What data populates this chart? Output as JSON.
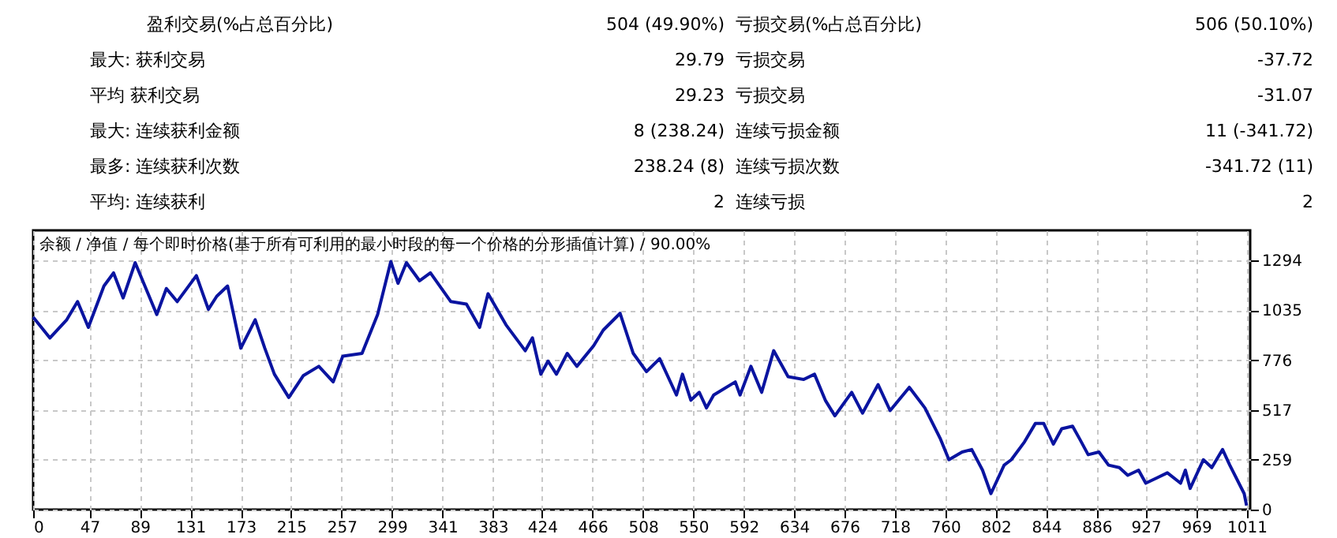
{
  "chart_data": {
    "type": "line",
    "title": "余额 / 净值 / 每个即时价格(基于所有可利用的最小时段的每一个价格的分形插值计算) / 90.00%",
    "x": [
      0,
      14,
      28,
      37,
      46,
      59,
      67,
      75,
      85,
      103,
      111,
      120,
      136,
      146,
      153,
      162,
      173,
      185,
      193,
      201,
      213,
      225,
      238,
      250,
      258,
      274,
      287,
      298,
      304,
      311,
      322,
      331,
      348,
      361,
      372,
      379,
      394,
      410,
      416,
      423,
      429,
      436,
      445,
      453,
      467,
      475,
      489,
      500,
      511,
      522,
      536,
      541,
      548,
      555,
      561,
      567,
      585,
      589,
      598,
      607,
      617,
      629,
      642,
      651,
      660,
      668,
      682,
      691,
      704,
      714,
      730,
      743,
      756,
      763,
      774,
      782,
      791,
      798,
      809,
      815,
      826,
      835,
      842,
      850,
      857,
      866,
      872,
      879,
      888,
      896,
      905,
      912,
      921,
      927,
      936,
      945,
      956,
      960,
      964,
      975,
      982,
      991,
      997,
      1009,
      1011
    ],
    "series": [
      {
        "color": "#0a14a0",
        "values": [
          999,
          891,
          986,
          1080,
          946,
          1161,
          1229,
          1099,
          1282,
          1013,
          1148,
          1080,
          1215,
          1040,
          1108,
          1161,
          838,
          986,
          838,
          703,
          582,
          695,
          744,
          663,
          797,
          811,
          1013,
          1288,
          1175,
          1282,
          1188,
          1229,
          1080,
          1067,
          946,
          1121,
          959,
          825,
          892,
          703,
          771,
          703,
          811,
          744,
          851,
          932,
          1019,
          811,
          716,
          784,
          595,
          703,
          568,
          609,
          528,
          595,
          663,
          595,
          744,
          609,
          825,
          690,
          676,
          703,
          568,
          487,
          609,
          501,
          649,
          514,
          635,
          528,
          366,
          259,
          299,
          312,
          205,
          83,
          231,
          259,
          352,
          447,
          447,
          340,
          420,
          433,
          366,
          285,
          299,
          231,
          218,
          178,
          205,
          137,
          164,
          191,
          137,
          205,
          110,
          259,
          218,
          312,
          231,
          83,
          21
        ]
      }
    ],
    "xlim": [
      0,
      1014
    ],
    "ylim": [
      0,
      1450
    ],
    "xticks": [
      0,
      47,
      89,
      131,
      173,
      215,
      257,
      299,
      341,
      383,
      424,
      466,
      508,
      550,
      592,
      634,
      676,
      718,
      760,
      802,
      844,
      886,
      927,
      969,
      1011
    ],
    "yticks": [
      0,
      259,
      517,
      776,
      1035,
      1294
    ],
    "grid": true,
    "line_style": "solid",
    "annotations": [
      "盈利交易(%占总百分比)",
      "504 (49.90%)",
      "亏损交易(%占总百分比)",
      "506 (50.10%)",
      "最大: 获利交易",
      "29.79",
      "亏损交易",
      "-37.72",
      "平均 获利交易",
      "29.23",
      "亏损交易",
      "-31.07",
      "最大: 连续获利金额",
      "8 (238.24)",
      "连续亏损金额",
      "11 (-341.72)",
      "最多: 连续获利次数",
      "238.24 (8)",
      "连续亏损次数",
      "-341.72 (11)",
      "平均: 连续获利",
      "2",
      "连续亏损",
      "2"
    ]
  }
}
